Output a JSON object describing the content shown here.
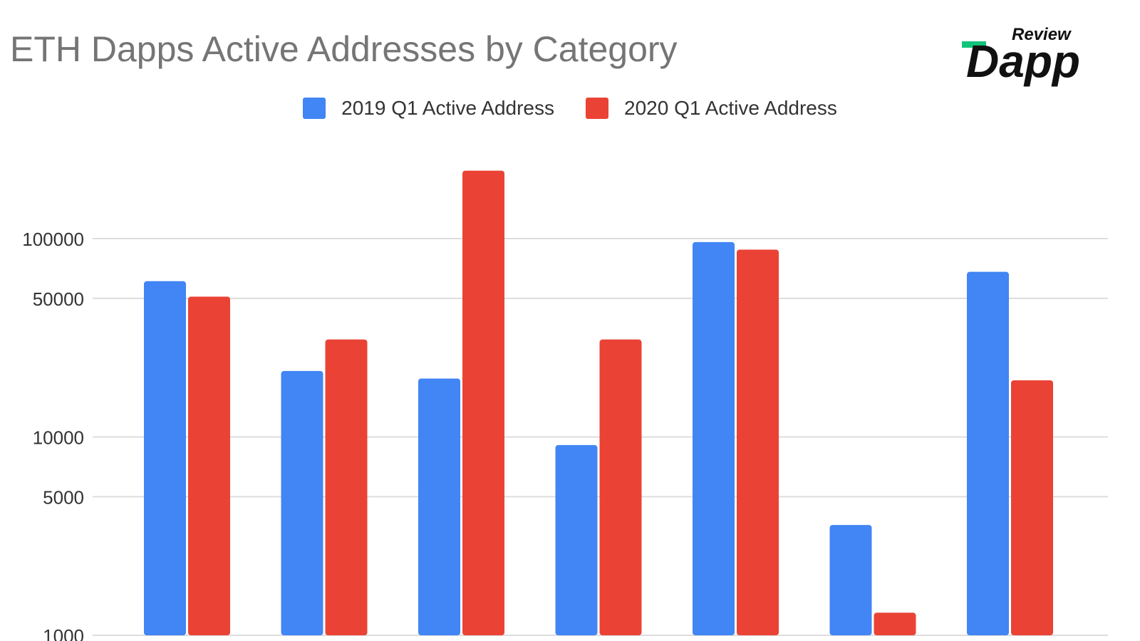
{
  "title": "ETH Dapps Active Addresses by Category",
  "logo": {
    "small_text": "Review",
    "brand_text": "Dapp",
    "accent": "#10c47a",
    "ink": "#111111"
  },
  "colors": {
    "series_2019": "#4285f4",
    "series_2020": "#ea4335",
    "grid": "#dddddd",
    "text": "#333333"
  },
  "chart_data": {
    "type": "bar",
    "title": "ETH Dapps Active Addresses by Category",
    "yscale": "log",
    "ylim": [
      1000,
      250000
    ],
    "yticks": [
      1000,
      5000,
      10000,
      50000,
      100000
    ],
    "ytick_labels": [
      "1000",
      "5000",
      "10000",
      "50000",
      "100000"
    ],
    "grid": true,
    "legend_position": "top",
    "categories": [
      "",
      "",
      "",
      "",
      "",
      "",
      ""
    ],
    "series": [
      {
        "name": "2019 Q1 Active Address",
        "color": "#4285f4",
        "values": [
          61000,
          21500,
          19700,
          9100,
          96000,
          3600,
          68000
        ]
      },
      {
        "name": "2020 Q1 Active Address",
        "color": "#ea4335",
        "values": [
          51000,
          31000,
          220000,
          31000,
          88000,
          1300,
          19300
        ]
      }
    ]
  }
}
